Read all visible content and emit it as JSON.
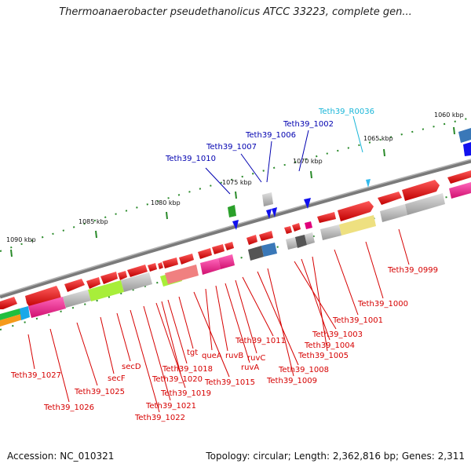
{
  "title": "Thermoanaerobacter pseudethanolicus ATCC 33223, complete gen...",
  "footer": {
    "accession": "Accession: NC_010321",
    "topology": "Topology: circular; Length: 2,362,816 bp; Genes: 2,311"
  },
  "ticks": [
    "1090 kbp",
    "1085 kbp",
    "1080 kbp",
    "1075 kbp",
    "1070 kbp",
    "1065 kbp",
    "1060 kbp"
  ],
  "labels_blue": [
    "Teth39_1010",
    "Teth39_1007",
    "Teth39_1006",
    "Teth39_1002"
  ],
  "label_cyan": "Teth39_R0036",
  "labels_red": [
    "Teth39_0999",
    "Teth39_1000",
    "Teth39_1001",
    "Teth39_1003",
    "Teth39_1004",
    "Teth39_1005",
    "Teth39_1011",
    "ruvC",
    "ruvA",
    "Teth39_1008",
    "Teth39_1009",
    "ruvB",
    "queA",
    "Teth39_1015",
    "tgt",
    "Teth39_1018",
    "Teth39_1020",
    "Teth39_1019",
    "Teth39_1021",
    "Teth39_1022",
    "secD",
    "secF",
    "Teth39_1025",
    "Teth39_1026",
    "Teth39_1027"
  ],
  "colors": {
    "forward_gene": "#e8001c",
    "small_gene_blue": "#1111ee",
    "trna_cyan": "#33bbee",
    "backbone": "#777777",
    "label_red": "#d60000",
    "label_blue": "#0000b0"
  }
}
